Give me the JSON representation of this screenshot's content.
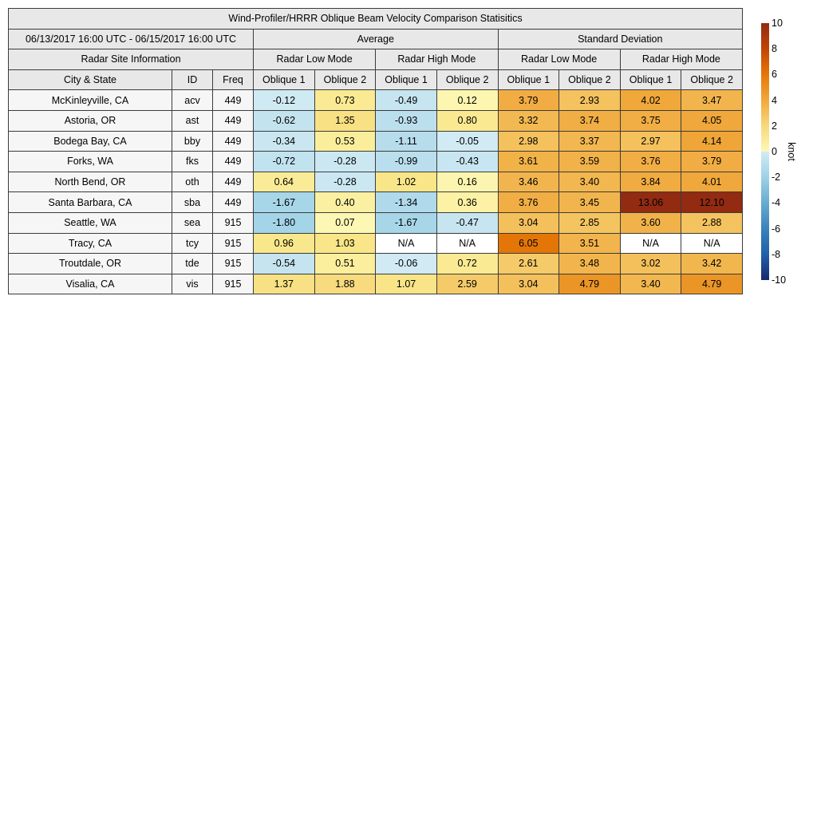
{
  "chart_data": {
    "type": "table",
    "title": "Wind-Profiler/HRRR Oblique Beam Velocity Comparison Statisitics",
    "header": {
      "date_range": "06/13/2017 16:00 UTC - 06/15/2017 16:00 UTC",
      "average": "Average",
      "std": "Standard Deviation",
      "site_info": "Radar Site Information",
      "low_mode": "Radar Low Mode",
      "high_mode": "Radar High Mode",
      "city": "City & State",
      "id": "ID",
      "freq": "Freq",
      "ob1": "Oblique 1",
      "ob2": "Oblique 2"
    },
    "value_columns": [
      "Average Radar Low Mode Oblique 1",
      "Average Radar Low Mode Oblique 2",
      "Average Radar High Mode Oblique 1",
      "Average Radar High Mode Oblique 2",
      "Std Radar Low Mode Oblique 1",
      "Std Radar Low Mode Oblique 2",
      "Std Radar High Mode Oblique 1",
      "Std Radar High Mode Oblique 2"
    ],
    "rows": [
      {
        "city": "McKinleyville, CA",
        "id": "acv",
        "freq": "449",
        "values": [
          "-0.12",
          "0.73",
          "-0.49",
          "0.12",
          "3.79",
          "2.93",
          "4.02",
          "3.47"
        ]
      },
      {
        "city": "Astoria, OR",
        "id": "ast",
        "freq": "449",
        "values": [
          "-0.62",
          "1.35",
          "-0.93",
          "0.80",
          "3.32",
          "3.74",
          "3.75",
          "4.05"
        ]
      },
      {
        "city": "Bodega Bay, CA",
        "id": "bby",
        "freq": "449",
        "values": [
          "-0.34",
          "0.53",
          "-1.11",
          "-0.05",
          "2.98",
          "3.37",
          "2.97",
          "4.14"
        ]
      },
      {
        "city": "Forks, WA",
        "id": "fks",
        "freq": "449",
        "values": [
          "-0.72",
          "-0.28",
          "-0.99",
          "-0.43",
          "3.61",
          "3.59",
          "3.76",
          "3.79"
        ]
      },
      {
        "city": "North Bend, OR",
        "id": "oth",
        "freq": "449",
        "values": [
          "0.64",
          "-0.28",
          "1.02",
          "0.16",
          "3.46",
          "3.40",
          "3.84",
          "4.01"
        ]
      },
      {
        "city": "Santa Barbara, CA",
        "id": "sba",
        "freq": "449",
        "values": [
          "-1.67",
          "0.40",
          "-1.34",
          "0.36",
          "3.76",
          "3.45",
          "13.06",
          "12.10"
        ]
      },
      {
        "city": "Seattle, WA",
        "id": "sea",
        "freq": "915",
        "values": [
          "-1.80",
          "0.07",
          "-1.67",
          "-0.47",
          "3.04",
          "2.85",
          "3.60",
          "2.88"
        ]
      },
      {
        "city": "Tracy, CA",
        "id": "tcy",
        "freq": "915",
        "values": [
          "0.96",
          "1.03",
          "N/A",
          "N/A",
          "6.05",
          "3.51",
          "N/A",
          "N/A"
        ]
      },
      {
        "city": "Troutdale, OR",
        "id": "tde",
        "freq": "915",
        "values": [
          "-0.54",
          "0.51",
          "-0.06",
          "0.72",
          "2.61",
          "3.48",
          "3.02",
          "3.42"
        ]
      },
      {
        "city": "Visalia, CA",
        "id": "vis",
        "freq": "915",
        "values": [
          "1.37",
          "1.88",
          "1.07",
          "2.59",
          "3.04",
          "4.79",
          "3.40",
          "4.79"
        ]
      }
    ],
    "na_label": "N/A",
    "colorbar": {
      "unit": "knot",
      "min": -10,
      "max": 10,
      "ticks": [
        10,
        8,
        6,
        4,
        2,
        0,
        -2,
        -4,
        -6,
        -8,
        -10
      ],
      "positive_stops": [
        [
          0,
          "#FDF8B8"
        ],
        [
          0.5,
          "#FBEE9C"
        ],
        [
          1,
          "#F9E689"
        ],
        [
          2,
          "#F7D97C"
        ],
        [
          4,
          "#F0A83C"
        ],
        [
          6,
          "#E57708"
        ],
        [
          8,
          "#C24408"
        ],
        [
          10,
          "#922B12"
        ]
      ],
      "negative_stops": [
        [
          0,
          "#D2EBF4"
        ],
        [
          0.5,
          "#C6E5F0"
        ],
        [
          1,
          "#BADEED"
        ],
        [
          2,
          "#9DD2E6"
        ],
        [
          4,
          "#68ABD1"
        ],
        [
          6,
          "#3A83BB"
        ],
        [
          8,
          "#2060A8"
        ],
        [
          10,
          "#17296E"
        ]
      ],
      "na_color": "#FFFFFF"
    }
  },
  "colors": {
    "header_bg": "#E8E8E8",
    "row_label_bg": "#F6F6F6",
    "border": "#3B3B3B",
    "page_bg": "#FFFFFF",
    "text": "#000000"
  }
}
